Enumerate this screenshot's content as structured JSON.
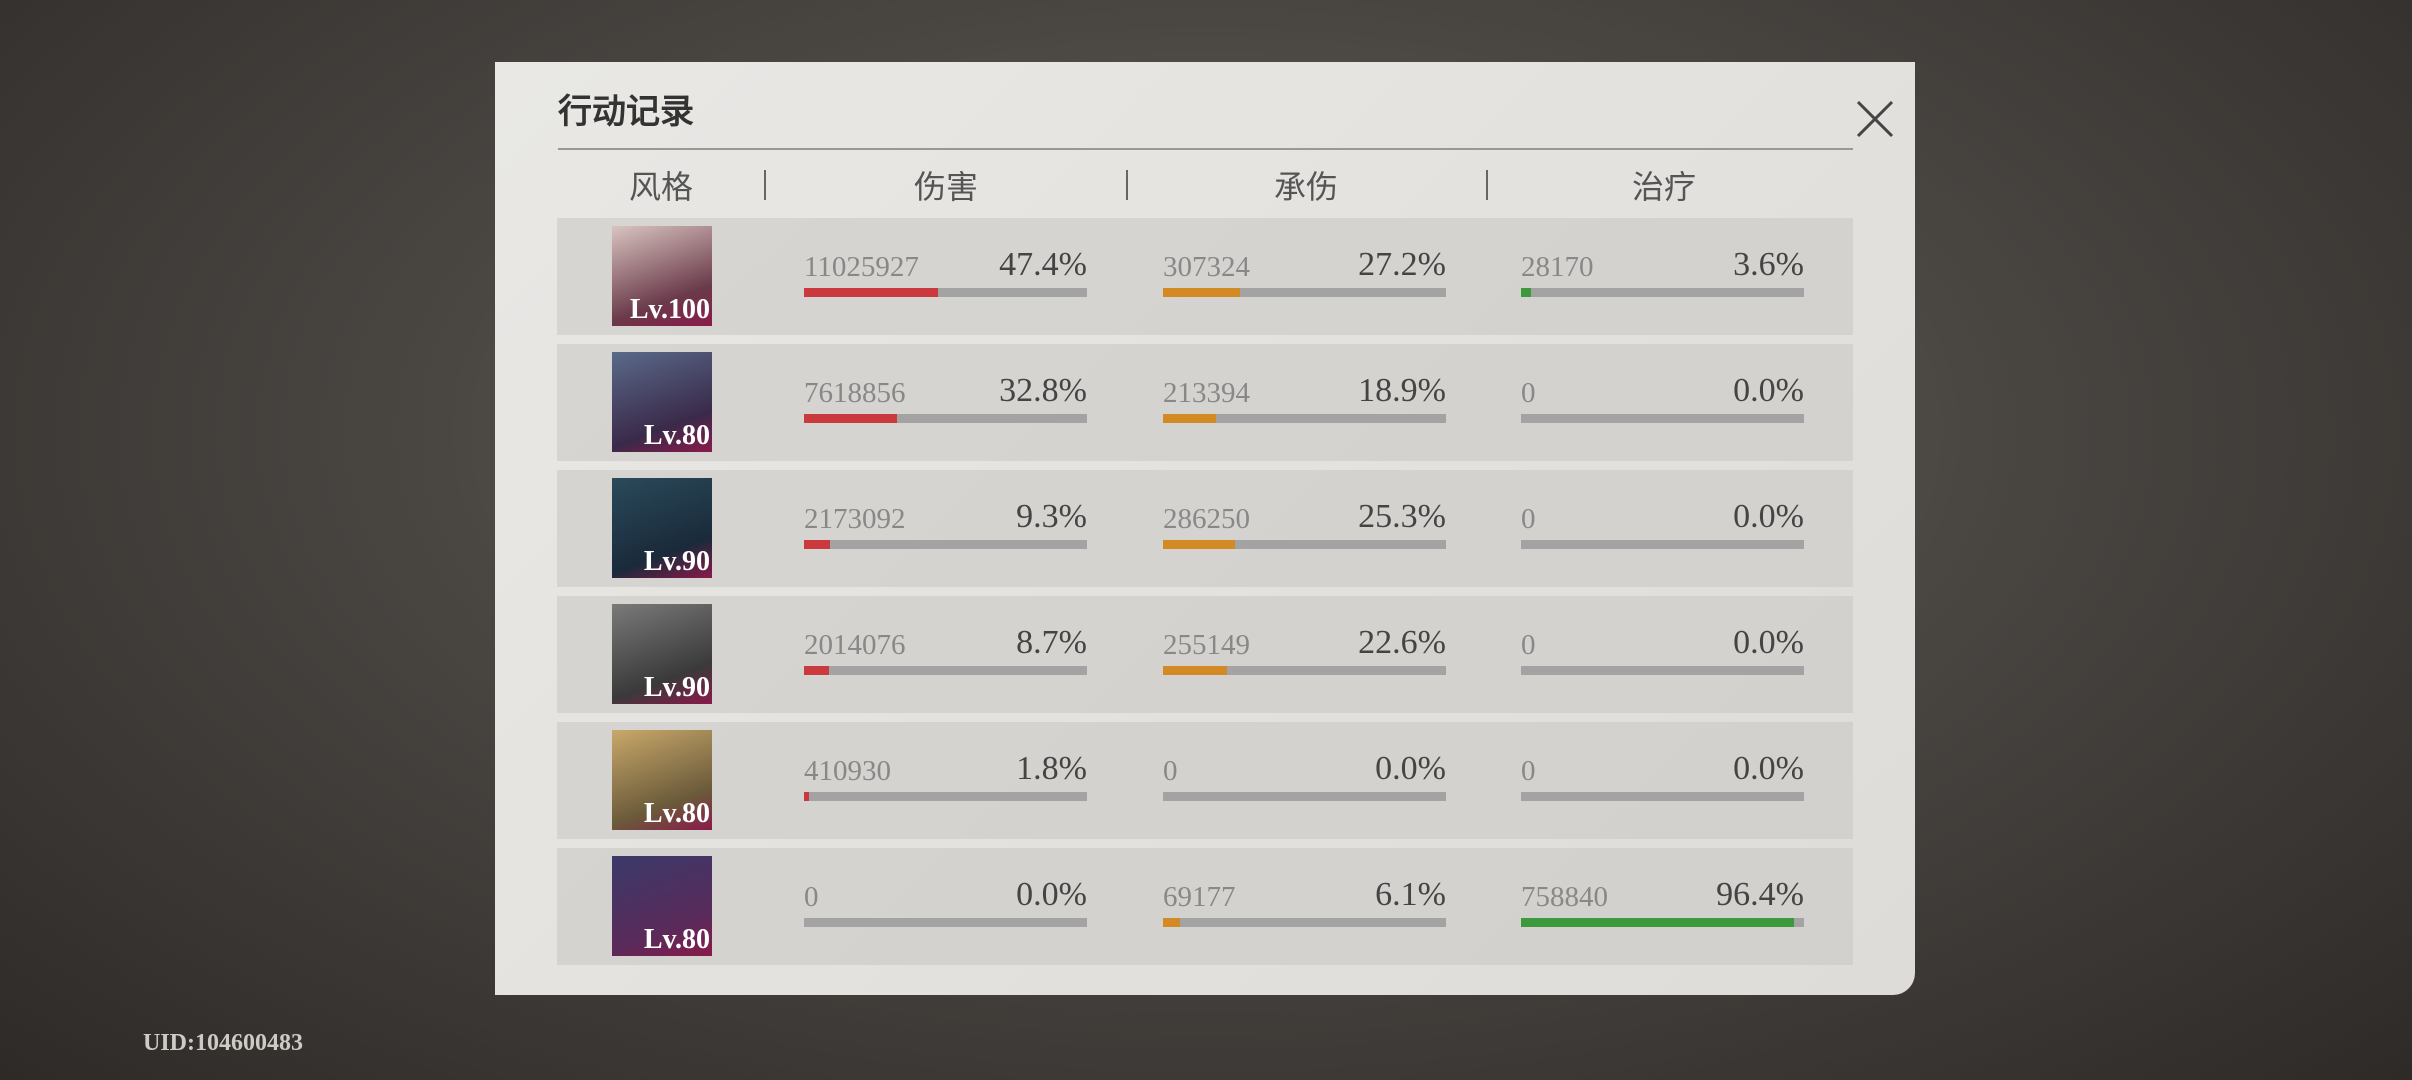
{
  "header": {
    "title": "行动记录"
  },
  "columns": [
    "风格",
    "伤害",
    "承伤",
    "治疗"
  ],
  "rows": [
    {
      "level": "Lv.100",
      "damage": {
        "value": 11025927,
        "percent": 47.4,
        "percent_label": "47.4%"
      },
      "taken": {
        "value": 307324,
        "percent": 27.2,
        "percent_label": "27.2%"
      },
      "heal": {
        "value": 28170,
        "percent": 3.6,
        "percent_label": "3.6%"
      }
    },
    {
      "level": "Lv.80",
      "damage": {
        "value": 7618856,
        "percent": 32.8,
        "percent_label": "32.8%"
      },
      "taken": {
        "value": 213394,
        "percent": 18.9,
        "percent_label": "18.9%"
      },
      "heal": {
        "value": 0,
        "percent": 0,
        "percent_label": "0.0%"
      }
    },
    {
      "level": "Lv.90",
      "damage": {
        "value": 2173092,
        "percent": 9.3,
        "percent_label": "9.3%"
      },
      "taken": {
        "value": 286250,
        "percent": 25.3,
        "percent_label": "25.3%"
      },
      "heal": {
        "value": 0,
        "percent": 0,
        "percent_label": "0.0%"
      }
    },
    {
      "level": "Lv.90",
      "damage": {
        "value": 2014076,
        "percent": 8.7,
        "percent_label": "8.7%"
      },
      "taken": {
        "value": 255149,
        "percent": 22.6,
        "percent_label": "22.6%"
      },
      "heal": {
        "value": 0,
        "percent": 0,
        "percent_label": "0.0%"
      }
    },
    {
      "level": "Lv.80",
      "damage": {
        "value": 410930,
        "percent": 1.8,
        "percent_label": "1.8%"
      },
      "taken": {
        "value": 0,
        "percent": 0,
        "percent_label": "0.0%"
      },
      "heal": {
        "value": 0,
        "percent": 0,
        "percent_label": "0.0%"
      }
    },
    {
      "level": "Lv.80",
      "damage": {
        "value": 0,
        "percent": 0,
        "percent_label": "0.0%"
      },
      "taken": {
        "value": 69177,
        "percent": 6.1,
        "percent_label": "6.1%"
      },
      "heal": {
        "value": 758840,
        "percent": 96.4,
        "percent_label": "96.4%"
      }
    }
  ],
  "bar_colors": {
    "damage": "#c9393d",
    "taken": "#d48a24",
    "heal": "#3c9a3c"
  },
  "footer": {
    "uid": "UID:104600483"
  }
}
